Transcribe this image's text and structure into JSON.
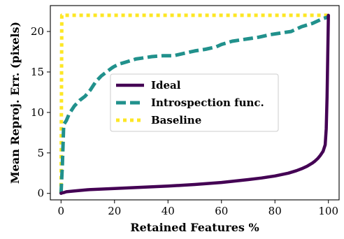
{
  "chart_data": {
    "type": "line",
    "title": "",
    "xlabel": "Retained Features %",
    "ylabel": "Mean Reproj. Err. (pixels)",
    "xlim": [
      -4,
      104
    ],
    "ylim": [
      -0.8,
      23.2
    ],
    "xticks": [
      0,
      20,
      40,
      60,
      80,
      100
    ],
    "yticks": [
      0,
      5,
      10,
      15,
      20
    ],
    "grid": false,
    "legend_position": "center",
    "series": [
      {
        "name": "Ideal",
        "color": "#440154",
        "style": "solid",
        "x": [
          0,
          0.3,
          1,
          2,
          5,
          10,
          20,
          30,
          40,
          50,
          60,
          70,
          75,
          80,
          85,
          88,
          90,
          92,
          94,
          95,
          96,
          97,
          98,
          98.8,
          99.2,
          99.5,
          100
        ],
        "y": [
          0,
          0.05,
          0.1,
          0.2,
          0.3,
          0.45,
          0.6,
          0.75,
          0.9,
          1.1,
          1.35,
          1.7,
          1.9,
          2.15,
          2.5,
          2.8,
          3.05,
          3.35,
          3.75,
          4.0,
          4.3,
          4.7,
          5.2,
          6.0,
          8.0,
          12.0,
          22.0
        ]
      },
      {
        "name": "Introspection func.",
        "color": "#21918c",
        "style": "dashed",
        "x": [
          0,
          0.5,
          1,
          2,
          3,
          5,
          7,
          9,
          11,
          13,
          15,
          17,
          19,
          20,
          22,
          24,
          26,
          28,
          30,
          34,
          38,
          42,
          46,
          50,
          54,
          58,
          60,
          62,
          64,
          66,
          70,
          74,
          78,
          82,
          84,
          86,
          88,
          90,
          92,
          94,
          96,
          98,
          100
        ],
        "y": [
          0,
          3.5,
          8.5,
          9.0,
          9.8,
          10.8,
          11.5,
          12.0,
          12.8,
          13.8,
          14.5,
          15.0,
          15.5,
          15.7,
          16.0,
          16.2,
          16.4,
          16.6,
          16.7,
          16.9,
          17.0,
          17.0,
          17.3,
          17.6,
          17.8,
          18.1,
          18.4,
          18.6,
          18.8,
          18.9,
          19.1,
          19.3,
          19.6,
          19.8,
          19.9,
          20.0,
          20.3,
          20.6,
          20.8,
          21.0,
          21.3,
          21.6,
          21.8
        ]
      },
      {
        "name": "Baseline",
        "color": "#fde725",
        "style": "dotted",
        "x": [
          0,
          0.3,
          100
        ],
        "y": [
          0,
          22,
          22
        ]
      }
    ]
  }
}
